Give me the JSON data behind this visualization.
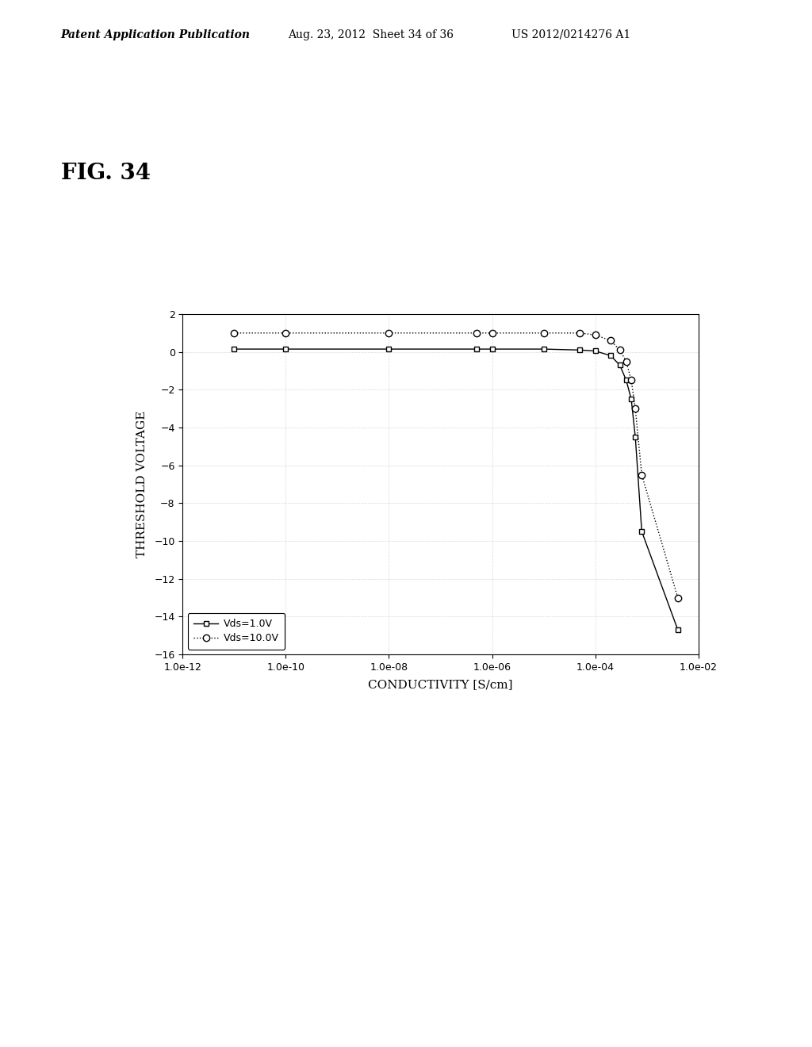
{
  "title_fig": "FIG. 34",
  "header_left": "Patent Application Publication",
  "header_mid": "Aug. 23, 2012  Sheet 34 of 36",
  "header_right": "US 2012/0214276 A1",
  "xlabel": "CONDUCTIVITY [S∕cm]",
  "ylabel": "THRESHOLD VOLTAGE",
  "ylim": [
    -16,
    2
  ],
  "yticks": [
    2,
    0,
    -2,
    -4,
    -6,
    -8,
    -10,
    -12,
    -14,
    -16
  ],
  "xtick_labels": [
    "1.0e-12",
    "1.0e-10",
    "1.0e-08",
    "1.0e-06",
    "1.0e-04",
    "1.0e-02"
  ],
  "series1_label": "Vds=1.0V",
  "series2_label": "Vds=10.0V",
  "series1_x": [
    1e-11,
    1e-10,
    1e-08,
    5e-07,
    1e-06,
    1e-05,
    5e-05,
    0.0001,
    0.0002,
    0.0003,
    0.0004,
    0.0005,
    0.0006,
    0.0008,
    0.004
  ],
  "series1_y": [
    0.15,
    0.15,
    0.15,
    0.15,
    0.15,
    0.15,
    0.1,
    0.05,
    -0.2,
    -0.7,
    -1.5,
    -2.5,
    -4.5,
    -9.5,
    -14.7
  ],
  "series2_x": [
    1e-11,
    1e-10,
    1e-08,
    5e-07,
    1e-06,
    1e-05,
    5e-05,
    0.0001,
    0.0002,
    0.0003,
    0.0004,
    0.0005,
    0.0006,
    0.0008,
    0.004
  ],
  "series2_y": [
    1.0,
    1.0,
    1.0,
    1.0,
    1.0,
    1.0,
    1.0,
    0.9,
    0.6,
    0.1,
    -0.5,
    -1.5,
    -3.0,
    -6.5,
    -13.0
  ],
  "background_color": "#ffffff",
  "plot_bg_color": "#ffffff",
  "grid_color": "#bbbbbb",
  "line_color": "#000000"
}
